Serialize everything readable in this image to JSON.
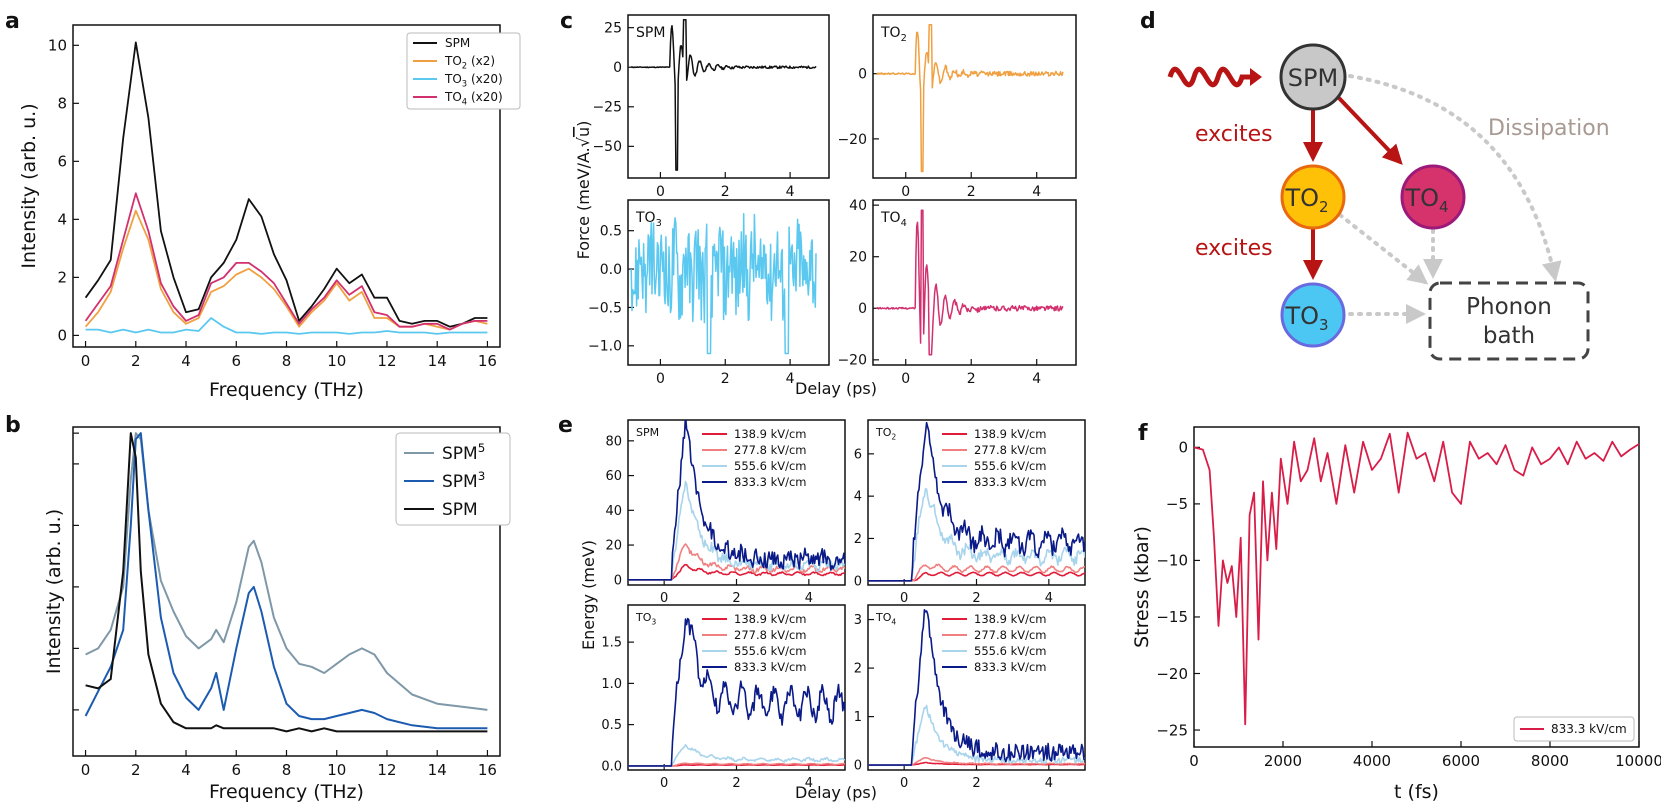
{
  "panel_letters": {
    "a": "a",
    "b": "b",
    "c": "c",
    "d": "d",
    "e": "e",
    "f": "f"
  },
  "colors": {
    "spm": "#111111",
    "to2": "#f0a040",
    "to3": "#5bc8f0",
    "to4": "#d2306e",
    "spm5": "#7f98a8",
    "spm3": "#1c5bb0",
    "e_138": "#e01c38",
    "e_277": "#f08080",
    "e_555": "#a8d4ec",
    "e_833": "#0a1a88",
    "stress": "#d81e48",
    "red_arrow": "#b81414",
    "gray_arrow": "#c9c9c9",
    "node_spm": "#c8c8c8",
    "node_to2": "#ffc107",
    "node_to4": "#d6336c",
    "node_to3": "#4cc7f3"
  },
  "chart_data": [
    {
      "id": "a",
      "type": "line",
      "xlabel": "Frequency (THz)",
      "ylabel": "Intensity (arb. u.)",
      "xlim": [
        -0.5,
        16.5
      ],
      "ylim": [
        -0.4,
        10.7
      ],
      "xticks": [
        0,
        2,
        4,
        6,
        8,
        10,
        12,
        14,
        16
      ],
      "yticks": [
        0,
        2,
        4,
        6,
        8,
        10
      ],
      "x": [
        0,
        0.5,
        1,
        1.5,
        2,
        2.5,
        3,
        3.5,
        4,
        4.5,
        5,
        5.5,
        6,
        6.5,
        7,
        7.5,
        8,
        8.5,
        9,
        9.5,
        10,
        10.5,
        11,
        11.5,
        12,
        12.5,
        13,
        13.5,
        14,
        14.5,
        15,
        15.5,
        16
      ],
      "series": [
        {
          "name": "SPM",
          "values": [
            1.3,
            1.9,
            2.6,
            6.8,
            10.1,
            7.5,
            3.6,
            2.0,
            0.8,
            0.9,
            2.0,
            2.5,
            3.3,
            4.7,
            4.1,
            2.8,
            1.9,
            0.5,
            1.0,
            1.6,
            2.3,
            1.8,
            2.1,
            1.3,
            1.3,
            0.5,
            0.4,
            0.5,
            0.5,
            0.3,
            0.4,
            0.6,
            0.6
          ]
        },
        {
          "name": "TO$2$ (x2)",
          "label_base": "TO",
          "label_sub": "2",
          "label_suffix": " (x2)",
          "values": [
            0.3,
            0.8,
            1.5,
            3.0,
            4.3,
            3.3,
            1.6,
            0.8,
            0.4,
            0.6,
            1.5,
            1.7,
            2.1,
            2.3,
            2.0,
            1.6,
            1.0,
            0.3,
            0.8,
            1.2,
            1.8,
            1.2,
            1.5,
            0.6,
            0.6,
            0.3,
            0.3,
            0.4,
            0.3,
            0.2,
            0.4,
            0.5,
            0.4
          ]
        },
        {
          "name": "TO3 (x20)",
          "label_base": "TO",
          "label_sub": "3",
          "label_suffix": " (x20)",
          "values": [
            0.2,
            0.2,
            0.1,
            0.2,
            0.1,
            0.2,
            0.1,
            0.1,
            0.2,
            0.15,
            0.6,
            0.3,
            0.1,
            0.1,
            0.05,
            0.1,
            0.1,
            0.05,
            0.1,
            0.1,
            0.1,
            0.05,
            0.1,
            0.1,
            0.15,
            0.1,
            0.1,
            0.1,
            0.05,
            0.1,
            0.1,
            0.1,
            0.1
          ]
        },
        {
          "name": "TO4 (x20)",
          "label_base": "TO",
          "label_sub": "4",
          "label_suffix": " (x20)",
          "values": [
            0.5,
            1.1,
            1.7,
            3.3,
            4.9,
            3.6,
            1.8,
            1.0,
            0.5,
            0.7,
            1.8,
            2.0,
            2.5,
            2.5,
            2.2,
            1.8,
            1.1,
            0.4,
            0.9,
            1.3,
            1.9,
            1.4,
            1.7,
            0.8,
            0.7,
            0.3,
            0.3,
            0.4,
            0.4,
            0.2,
            0.4,
            0.5,
            0.5
          ]
        }
      ]
    },
    {
      "id": "b",
      "type": "line",
      "xlabel": "Frequency (THz)",
      "ylabel": "Intensity (arb. u.)",
      "xlim": [
        -0.5,
        16.5
      ],
      "ylim": [
        -0.05,
        1.02
      ],
      "xticks": [
        0,
        2,
        4,
        6,
        8,
        10,
        12,
        14,
        16
      ],
      "x": [
        0,
        0.5,
        1,
        1.5,
        1.8,
        2,
        2.2,
        2.5,
        3,
        3.5,
        4,
        4.5,
        5,
        5.2,
        5.5,
        6,
        6.5,
        6.7,
        7,
        7.5,
        8,
        8.5,
        9,
        9.5,
        10,
        10.5,
        11,
        11.5,
        12,
        13,
        14,
        15,
        16
      ],
      "series": [
        {
          "name": "SPM5",
          "label_base": "SPM",
          "label_sup": "5",
          "values": [
            0.28,
            0.3,
            0.36,
            0.5,
            0.85,
            1.0,
            0.98,
            0.75,
            0.52,
            0.42,
            0.34,
            0.3,
            0.33,
            0.36,
            0.32,
            0.45,
            0.63,
            0.65,
            0.58,
            0.4,
            0.3,
            0.25,
            0.24,
            0.22,
            0.25,
            0.28,
            0.3,
            0.28,
            0.22,
            0.15,
            0.12,
            0.11,
            0.1
          ]
        },
        {
          "name": "SPM3",
          "label_base": "SPM",
          "label_sup": "3",
          "values": [
            0.08,
            0.16,
            0.24,
            0.36,
            0.7,
            0.98,
            1.0,
            0.75,
            0.4,
            0.22,
            0.14,
            0.1,
            0.17,
            0.22,
            0.1,
            0.3,
            0.48,
            0.5,
            0.42,
            0.24,
            0.12,
            0.08,
            0.07,
            0.07,
            0.08,
            0.09,
            0.1,
            0.09,
            0.07,
            0.05,
            0.04,
            0.04,
            0.04
          ]
        },
        {
          "name": "SPM",
          "label_base": "SPM",
          "values": [
            0.18,
            0.17,
            0.2,
            0.55,
            1.0,
            0.92,
            0.55,
            0.28,
            0.12,
            0.06,
            0.04,
            0.04,
            0.04,
            0.05,
            0.04,
            0.04,
            0.04,
            0.04,
            0.04,
            0.04,
            0.03,
            0.04,
            0.03,
            0.04,
            0.03,
            0.03,
            0.03,
            0.03,
            0.03,
            0.03,
            0.03,
            0.03,
            0.03
          ]
        }
      ]
    },
    {
      "id": "c",
      "type": "line",
      "shared_xlabel": "Delay (ps)",
      "shared_ylabel_text": "Force (meV/A.",
      "shared_ylabel_sqrt": "u",
      "shared_ylabel_close": ")",
      "subplots": [
        {
          "name": "SPM",
          "label_base": "SPM",
          "xlim": [
            -1,
            5.2
          ],
          "ylim": [
            -70,
            33
          ],
          "xticks": [
            0,
            2,
            4
          ],
          "yticks": [
            25,
            0,
            -25,
            -50
          ],
          "ytick_labels": [
            "25",
            "0",
            "−25",
            "−50"
          ],
          "amp": 30,
          "neg_amp": 65,
          "noise": 1.5,
          "series_color": "spm"
        },
        {
          "name": "TO2",
          "label_base": "TO",
          "label_sub": "2",
          "xlim": [
            -1,
            5.2
          ],
          "ylim": [
            -32,
            18
          ],
          "xticks": [
            0,
            2,
            4
          ],
          "yticks": [
            0,
            -20
          ],
          "ytick_labels": [
            "0",
            "−20"
          ],
          "amp": 15,
          "neg_amp": 30,
          "noise": 1.5,
          "series_color": "to2"
        },
        {
          "name": "TO3",
          "label_base": "TO",
          "label_sub": "3",
          "xlim": [
            -1,
            5.2
          ],
          "ylim": [
            -1.25,
            0.9
          ],
          "xticks": [
            0,
            2,
            4
          ],
          "yticks": [
            0.5,
            0.0,
            -0.5,
            -1.0
          ],
          "ytick_labels": [
            "0.5",
            "0.0",
            "−0.5",
            "−1.0"
          ],
          "amp": 0.7,
          "neg_amp": 1.1,
          "noise": 0.3,
          "series_color": "to3"
        },
        {
          "name": "TO4",
          "label_base": "TO",
          "label_sub": "4",
          "xlim": [
            -1,
            5.2
          ],
          "ylim": [
            -22,
            42
          ],
          "xticks": [
            0,
            2,
            4
          ],
          "yticks": [
            40,
            20,
            0,
            -20
          ],
          "ytick_labels": [
            "40",
            "20",
            "0",
            "−20"
          ],
          "amp": 38,
          "neg_amp": 18,
          "noise": 2,
          "series_color": "to4"
        }
      ]
    },
    {
      "id": "e",
      "type": "line",
      "shared_xlabel": "Delay (ps)",
      "shared_ylabel": "Energy (meV)",
      "legend": [
        "138.9 kV/cm",
        "277.8 kV/cm",
        "555.6 kV/cm",
        "833.3 kV/cm"
      ],
      "subplots": [
        {
          "name": "SPM",
          "label_base": "SPM",
          "xlim": [
            -1,
            5
          ],
          "ylim": [
            -3,
            92
          ],
          "xticks": [
            0,
            2,
            4
          ],
          "yticks": [
            0,
            20,
            40,
            60,
            80
          ],
          "ytick_labels": [
            "0",
            "20",
            "40",
            "60",
            "80"
          ],
          "peaks": [
            8,
            20,
            55,
            90
          ],
          "tail": [
            3,
            5,
            6,
            7
          ]
        },
        {
          "name": "TO2",
          "label_base": "TO",
          "label_sub": "2",
          "xlim": [
            -1,
            5
          ],
          "ylim": [
            -0.2,
            7.6
          ],
          "xticks": [
            0,
            2,
            4
          ],
          "yticks": [
            0,
            2,
            4,
            6
          ],
          "ytick_labels": [
            "0",
            "2",
            "4",
            "6"
          ],
          "peaks": [
            0.3,
            0.7,
            4.5,
            7.5
          ],
          "tail": [
            0.3,
            0.5,
            0.9,
            1.4
          ]
        },
        {
          "name": "TO3",
          "label_base": "TO",
          "label_sub": "3",
          "xlim": [
            -1,
            5
          ],
          "ylim": [
            -0.05,
            1.95
          ],
          "xticks": [
            0,
            2,
            4
          ],
          "yticks": [
            0.0,
            0.5,
            1.0,
            1.5
          ],
          "ytick_labels": [
            "0.0",
            "0.5",
            "1.0",
            "1.5"
          ],
          "peaks": [
            0.01,
            0.03,
            0.25,
            1.8
          ],
          "tail": [
            0.01,
            0.02,
            0.06,
            0.65
          ]
        },
        {
          "name": "TO4",
          "label_base": "TO",
          "label_sub": "4",
          "xlim": [
            -1,
            5
          ],
          "ylim": [
            -0.1,
            3.3
          ],
          "xticks": [
            0,
            2,
            4
          ],
          "yticks": [
            0,
            1,
            2,
            3
          ],
          "ytick_labels": [
            "0",
            "1",
            "2",
            "3"
          ],
          "peaks": [
            0.05,
            0.15,
            1.2,
            3.2
          ],
          "tail": [
            0.01,
            0.02,
            0.04,
            0.08
          ]
        }
      ]
    },
    {
      "id": "f",
      "type": "line",
      "xlabel": "t (fs)",
      "ylabel": "Stress (kbar)",
      "xlim": [
        0,
        10000
      ],
      "ylim": [
        -26.5,
        1.8
      ],
      "xticks": [
        0,
        2000,
        4000,
        6000,
        8000,
        10000
      ],
      "yticks": [
        0,
        -5,
        -10,
        -15,
        -20,
        -25
      ],
      "ytick_labels": [
        "0",
        "−5",
        "−10",
        "−15",
        "−20",
        "−25"
      ],
      "legend": "833.3 kV/cm",
      "x": [
        0,
        200,
        350,
        450,
        550,
        650,
        750,
        850,
        950,
        1050,
        1150,
        1250,
        1350,
        1450,
        1550,
        1650,
        1750,
        1850,
        1950,
        2100,
        2250,
        2400,
        2550,
        2700,
        2850,
        3000,
        3200,
        3400,
        3600,
        3800,
        4000,
        4200,
        4400,
        4600,
        4800,
        5000,
        5200,
        5400,
        5600,
        5800,
        6000,
        6200,
        6400,
        6600,
        6800,
        7000,
        7200,
        7400,
        7600,
        7800,
        8000,
        8200,
        8400,
        8600,
        8800,
        9000,
        9200,
        9400,
        9600,
        9800,
        10000
      ],
      "values": [
        0,
        -0.2,
        -2,
        -8,
        -15.8,
        -10,
        -12,
        -10.5,
        -15,
        -8,
        -24.5,
        -6,
        -4,
        -17,
        -3,
        -10,
        -4,
        -9,
        -1,
        -5,
        0.5,
        -3,
        -2,
        0.8,
        -3,
        -0.5,
        -5,
        0.2,
        -4,
        0.5,
        -2,
        -1,
        1.2,
        -4,
        1.3,
        -1,
        -0.5,
        -3,
        0.5,
        -4,
        -5,
        0.5,
        -1,
        -0.5,
        -1.5,
        0.2,
        -2,
        -2.5,
        0,
        -1.5,
        -1,
        0,
        -1.5,
        0.5,
        -1,
        -0.5,
        -1.2,
        0.5,
        -0.8,
        -0.2,
        0.3
      ]
    }
  ],
  "diagram_d": {
    "nodes": {
      "spm": {
        "label": "SPM"
      },
      "to2": {
        "label_base": "TO",
        "label_sub": "2"
      },
      "to4": {
        "label_base": "TO",
        "label_sub": "4"
      },
      "to3": {
        "label_base": "TO",
        "label_sub": "3"
      }
    },
    "bath_line1": "Phonon",
    "bath_line2": "bath",
    "excites_label_1": "excites",
    "excites_label_2": "excites",
    "dissipation_label": "Dissipation"
  }
}
